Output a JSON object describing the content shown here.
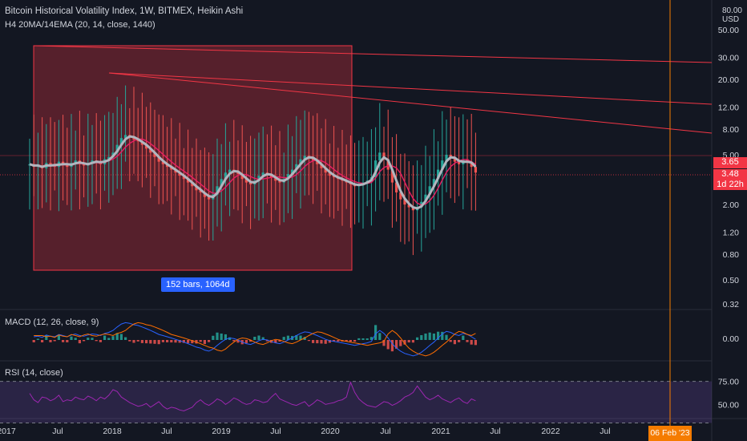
{
  "header": {
    "title": "Bitcoin Historical Volatility Index, 1W, BITMEX, Heikin Ashi",
    "indicator": "H4 20MA/14EMA (20, 14, close, 1440)"
  },
  "price_axis": {
    "unit": "USD",
    "top_label": "80.00",
    "tag_last": "3.65",
    "tag_close": "3.48",
    "tag_timer": "1d 22h"
  },
  "measure_label": "152 bars, 1064d",
  "crosshair_date": "06 Feb '23",
  "macd": {
    "legend": "MACD (12, 26, close, 9)",
    "tick": "0.00"
  },
  "rsi": {
    "legend": "RSI (14, close)",
    "ticks": [
      "75.00",
      "50.00"
    ]
  },
  "colors": {
    "background": "#131722",
    "up": "#26a69a",
    "down": "#ef5350",
    "ma": "#b2b5be",
    "ema": "#e91e63",
    "drawing": "#f23645",
    "crosshair": "#f57c00",
    "rsi": "#9c27b0",
    "macd_line": "#2962ff",
    "signal_line": "#ff6d00"
  },
  "chart_data": [
    {
      "type": "candlestick",
      "y_scale": "log",
      "y_ticks": [
        "50.00",
        "30.00",
        "20.00",
        "12.00",
        "8.00",
        "5.00",
        "2.00",
        "1.20",
        "0.80",
        "0.50",
        "0.32"
      ],
      "x_ticks": [
        "2017",
        "Jul",
        "2018",
        "Jul",
        "2019",
        "Jul",
        "2020",
        "Jul",
        "2021",
        "Jul",
        "2022",
        "Jul"
      ],
      "close_series": [
        4.2,
        4.0,
        4.1,
        3.9,
        4.3,
        4.1,
        4.0,
        4.4,
        4.2,
        4.0,
        4.3,
        4.5,
        4.2,
        4.1,
        4.3,
        4.5,
        4.4,
        4.2,
        4.6,
        4.8,
        5.2,
        6.0,
        6.8,
        7.2,
        7.0,
        6.6,
        6.4,
        6.0,
        5.6,
        5.2,
        4.8,
        4.4,
        4.2,
        4.0,
        3.8,
        3.6,
        3.4,
        3.2,
        3.0,
        2.8,
        2.6,
        2.5,
        2.3,
        2.2,
        2.4,
        2.8,
        3.2,
        3.6,
        3.8,
        3.7,
        3.5,
        3.2,
        3.0,
        2.9,
        3.1,
        3.4,
        3.6,
        3.5,
        3.3,
        3.1,
        3.0,
        3.2,
        3.5,
        3.8,
        4.2,
        4.6,
        4.9,
        4.8,
        4.5,
        4.2,
        3.9,
        3.6,
        3.4,
        3.3,
        3.2,
        3.1,
        3.0,
        2.9,
        2.8,
        2.9,
        3.0,
        3.1,
        3.3,
        4.5,
        5.2,
        4.6,
        3.8,
        3.0,
        2.5,
        2.2,
        2.0,
        1.9,
        1.8,
        1.9,
        2.1,
        2.4,
        2.8,
        3.2,
        3.8,
        4.5,
        5.0,
        4.8,
        4.4,
        4.2,
        4.6,
        4.4,
        4.0,
        3.6
      ]
    },
    {
      "type": "bar",
      "name": "MACD histogram",
      "y_ticks": [
        "0.00"
      ]
    },
    {
      "type": "line",
      "name": "RSI",
      "ylim": [
        0,
        100
      ],
      "y_ticks": [
        "75.00",
        "50.00"
      ],
      "values": [
        62,
        55,
        52,
        58,
        57,
        54,
        56,
        60,
        53,
        55,
        54,
        58,
        56,
        55,
        59,
        57,
        54,
        58,
        56,
        60,
        66,
        64,
        58,
        55,
        52,
        50,
        48,
        49,
        51,
        47,
        50,
        53,
        48,
        45,
        47,
        46,
        44,
        43,
        45,
        47,
        52,
        55,
        51,
        49,
        52,
        56,
        54,
        50,
        53,
        57,
        55,
        52,
        50,
        51,
        55,
        54,
        52,
        53,
        58,
        62,
        56,
        54,
        52,
        50,
        49,
        51,
        53,
        48,
        51,
        55,
        53,
        50,
        51,
        52,
        54,
        55,
        58,
        74,
        63,
        56,
        52,
        49,
        48,
        47,
        50,
        53,
        52,
        49,
        51,
        54,
        58,
        60,
        63,
        70,
        64,
        58,
        55,
        57,
        60,
        56,
        54,
        52,
        55,
        57,
        53,
        51,
        56,
        54
      ]
    }
  ]
}
